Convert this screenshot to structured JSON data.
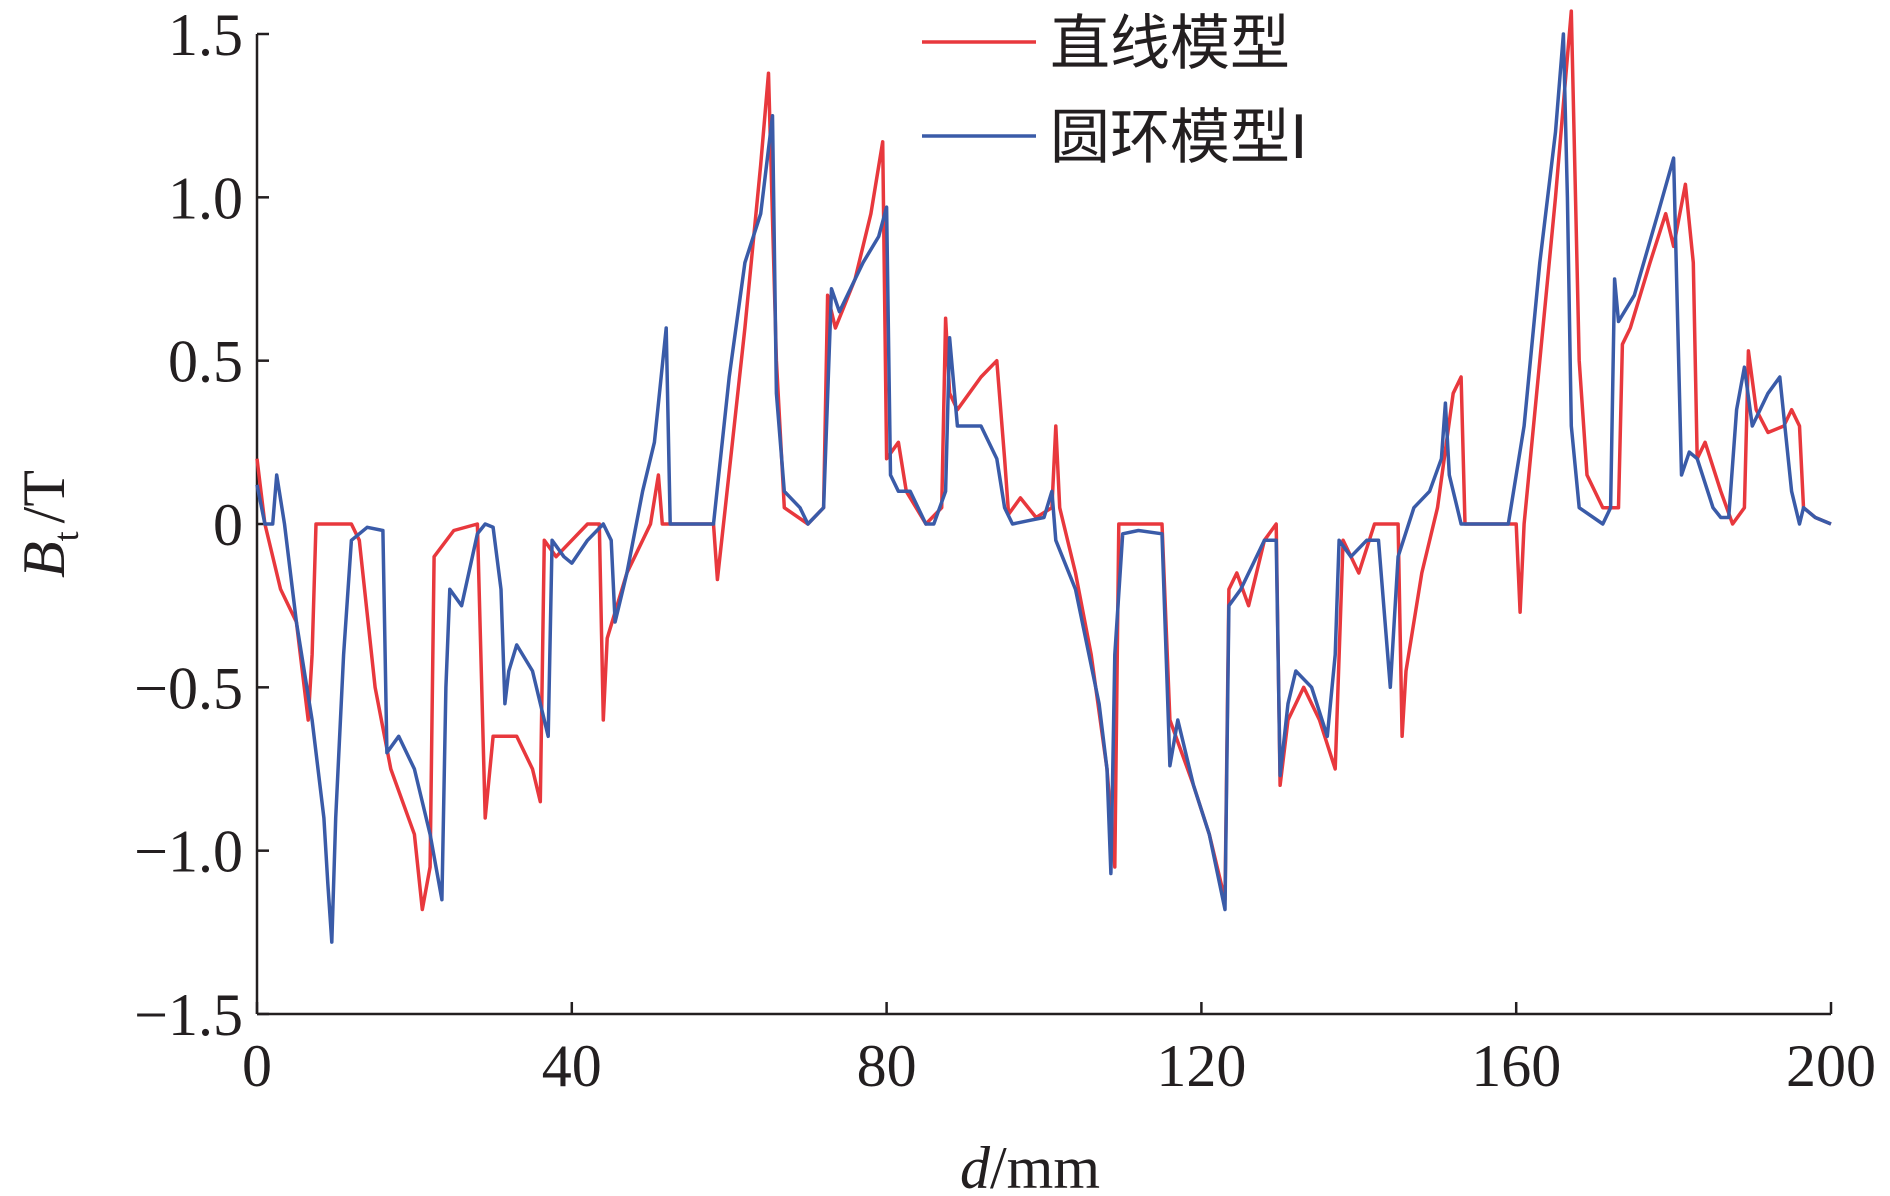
{
  "chart_data": {
    "type": "line",
    "x_label": {
      "var": "d",
      "unit": "/mm"
    },
    "y_label": {
      "main": "B",
      "sub": "t",
      "unit": "/T"
    },
    "xlim": [
      0,
      200
    ],
    "xticks": [
      0,
      40,
      80,
      120,
      160,
      200
    ],
    "ylim": [
      -1.5,
      1.5
    ],
    "yticks": [
      {
        "value": -1.5,
        "label": "−1.5"
      },
      {
        "value": -1.0,
        "label": "−1.0"
      },
      {
        "value": -0.5,
        "label": "−0.5"
      },
      0,
      0.5,
      {
        "value": 1.0,
        "label": "1.0"
      },
      1.5
    ],
    "series": [
      {
        "name": "直线模型",
        "color": "#e8383d",
        "x": [
          0,
          1,
          3,
          5,
          6.5,
          7,
          7.5,
          12,
          13,
          15,
          17,
          20,
          21,
          22,
          22.5,
          25,
          28,
          29,
          30,
          33,
          35,
          36,
          36.5,
          38,
          40,
          42,
          43.5,
          44,
          44.5,
          47,
          50,
          51,
          51.5,
          58,
          58.5,
          59.5,
          62,
          64,
          65,
          66,
          67,
          70,
          72,
          72.5,
          73.5,
          76,
          78,
          79.5,
          80,
          81.5,
          82.5,
          85,
          87,
          87.5,
          88,
          89,
          92,
          94,
          95,
          95.5,
          97,
          99,
          101,
          101.5,
          102,
          104,
          106,
          108,
          109,
          109.5,
          115,
          116,
          119,
          121,
          123,
          123.5,
          124.5,
          126,
          128,
          129.5,
          130,
          131,
          133,
          135,
          137,
          138,
          140,
          142,
          145,
          145.5,
          146,
          148,
          150,
          152,
          153,
          153.5,
          158,
          160,
          160.5,
          161,
          163,
          165,
          167,
          168,
          169,
          171,
          173,
          173.5,
          174.5,
          177,
          179,
          180,
          181.5,
          182.5,
          183,
          184,
          186,
          187.5,
          189,
          189.5,
          190.5,
          192,
          194,
          195,
          196,
          196.5,
          198,
          200
        ],
        "values": [
          0.2,
          0.0,
          -0.2,
          -0.3,
          -0.6,
          -0.4,
          0,
          0,
          -0.05,
          -0.5,
          -0.75,
          -0.95,
          -1.18,
          -1.05,
          -0.1,
          -0.02,
          0,
          -0.9,
          -0.65,
          -0.65,
          -0.75,
          -0.85,
          -0.05,
          -0.1,
          -0.05,
          0,
          0,
          -0.6,
          -0.35,
          -0.15,
          0,
          0.15,
          0,
          0,
          -0.17,
          0.05,
          0.6,
          1.1,
          1.38,
          0.5,
          0.05,
          0,
          0.05,
          0.7,
          0.6,
          0.75,
          0.95,
          1.17,
          0.2,
          0.25,
          0.1,
          0,
          0.05,
          0.63,
          0.4,
          0.35,
          0.45,
          0.5,
          0.2,
          0.03,
          0.08,
          0.02,
          0.05,
          0.3,
          0.05,
          -0.15,
          -0.4,
          -0.75,
          -1.05,
          0,
          0,
          -0.6,
          -0.8,
          -0.95,
          -1.15,
          -0.2,
          -0.15,
          -0.25,
          -0.05,
          0,
          -0.8,
          -0.6,
          -0.5,
          -0.6,
          -0.75,
          -0.05,
          -0.15,
          0,
          0,
          -0.65,
          -0.45,
          -0.15,
          0.05,
          0.4,
          0.45,
          0,
          0,
          0,
          -0.27,
          0,
          0.5,
          1.0,
          1.57,
          0.5,
          0.15,
          0.05,
          0.05,
          0.55,
          0.6,
          0.8,
          0.95,
          0.85,
          1.04,
          0.8,
          0.2,
          0.25,
          0.1,
          0,
          0.05,
          0.53,
          0.35,
          0.28,
          0.3,
          0.35,
          0.3,
          0.05,
          0.02,
          0
        ]
      },
      {
        "name": "圆环模型I",
        "color": "#3a5ba8",
        "x": [
          0,
          1,
          2,
          2.5,
          3.5,
          5,
          7,
          8.5,
          9,
          9.5,
          10,
          11,
          12,
          14,
          16,
          16.5,
          18,
          20,
          22,
          23.5,
          24,
          24.5,
          26,
          28,
          29,
          30,
          31,
          31.5,
          32,
          33,
          35,
          37,
          37.5,
          39,
          40,
          42,
          44,
          45,
          45.5,
          47,
          49,
          50.5,
          52,
          52.5,
          58,
          60,
          62,
          64,
          65.5,
          66,
          67,
          69,
          70,
          72,
          73,
          74,
          77,
          79,
          80,
          80.5,
          81.5,
          83,
          85,
          86,
          87.5,
          88,
          89,
          92,
          94,
          95,
          96,
          98,
          100,
          101,
          101.5,
          104,
          107,
          108,
          108.5,
          109,
          110,
          112,
          115,
          116,
          117,
          119,
          121,
          123,
          123.5,
          125,
          127,
          128,
          129.5,
          130,
          131,
          132,
          134,
          136,
          137,
          137.5,
          139,
          141,
          142.5,
          144,
          145,
          147,
          149,
          150.5,
          151,
          151.5,
          152.5,
          153,
          159,
          161,
          163,
          165,
          166,
          166.5,
          167,
          168,
          171,
          172,
          172.5,
          173,
          175,
          178,
          180,
          181,
          182,
          183,
          185,
          186,
          187,
          188,
          189,
          190,
          192,
          193.5,
          195,
          196,
          196.5,
          198,
          200
        ],
        "values": [
          0.12,
          0,
          0,
          0.15,
          0,
          -0.3,
          -0.6,
          -0.9,
          -1.1,
          -1.28,
          -0.9,
          -0.4,
          -0.05,
          -0.01,
          -0.02,
          -0.7,
          -0.65,
          -0.75,
          -0.95,
          -1.15,
          -0.5,
          -0.2,
          -0.25,
          -0.03,
          0,
          -0.01,
          -0.2,
          -0.55,
          -0.45,
          -0.37,
          -0.45,
          -0.65,
          -0.05,
          -0.1,
          -0.12,
          -0.05,
          0,
          -0.05,
          -0.3,
          -0.15,
          0.1,
          0.25,
          0.6,
          0,
          0,
          0.45,
          0.8,
          0.95,
          1.25,
          0.4,
          0.1,
          0.05,
          0,
          0.05,
          0.72,
          0.65,
          0.8,
          0.88,
          0.97,
          0.15,
          0.1,
          0.1,
          0,
          0,
          0.1,
          0.57,
          0.3,
          0.3,
          0.2,
          0.05,
          0,
          0.01,
          0.02,
          0.1,
          -0.05,
          -0.2,
          -0.55,
          -0.75,
          -1.07,
          -0.4,
          -0.03,
          -0.02,
          -0.03,
          -0.74,
          -0.6,
          -0.8,
          -0.95,
          -1.18,
          -0.25,
          -0.2,
          -0.1,
          -0.05,
          -0.05,
          -0.77,
          -0.55,
          -0.45,
          -0.5,
          -0.65,
          -0.4,
          -0.05,
          -0.1,
          -0.05,
          -0.05,
          -0.5,
          -0.1,
          0.05,
          0.1,
          0.2,
          0.37,
          0.15,
          0.05,
          0,
          0,
          0.3,
          0.8,
          1.2,
          1.5,
          1.0,
          0.3,
          0.05,
          0,
          0.05,
          0.75,
          0.62,
          0.7,
          0.95,
          1.12,
          0.15,
          0.22,
          0.2,
          0.05,
          0.02,
          0.02,
          0.35,
          0.48,
          0.3,
          0.4,
          0.45,
          0.1,
          0,
          0.05,
          0.02,
          0
        ]
      }
    ]
  }
}
